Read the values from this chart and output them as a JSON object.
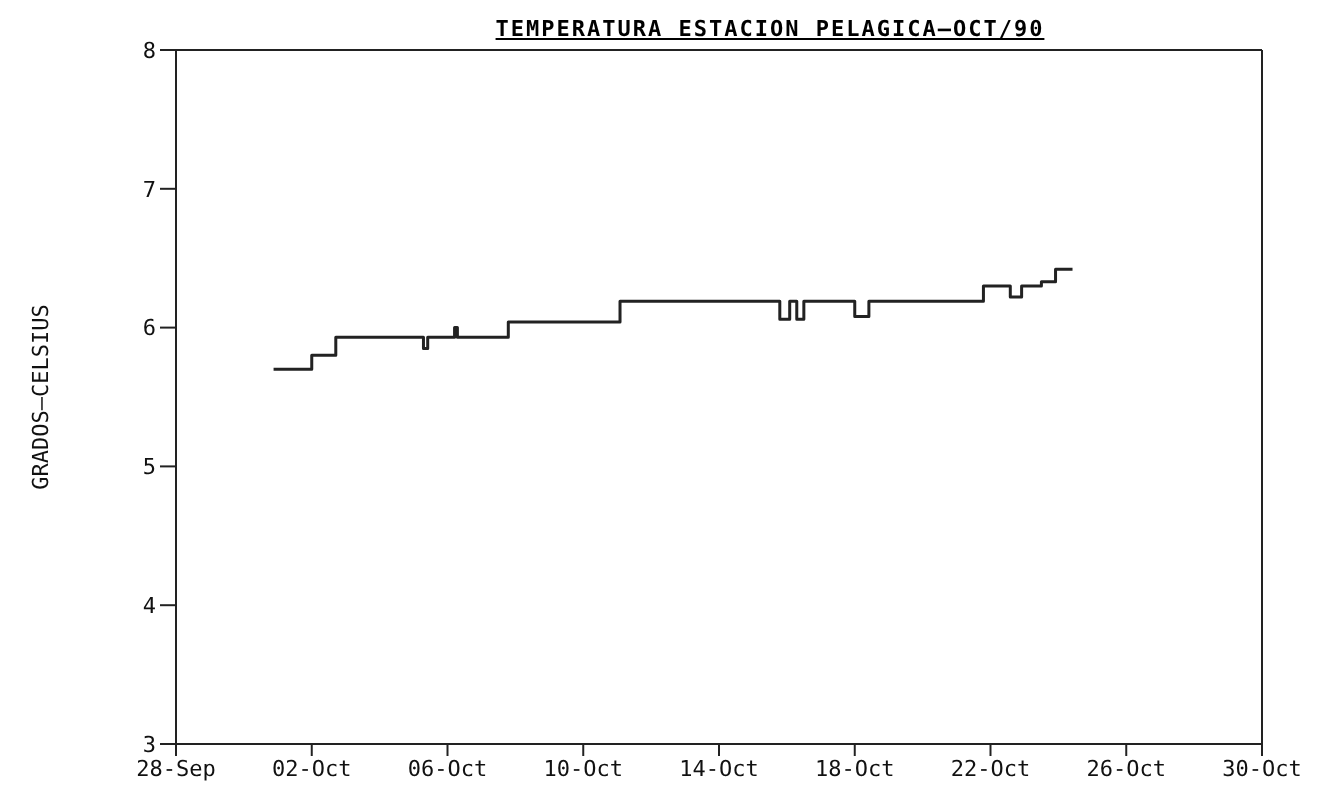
{
  "chart_data": {
    "type": "step",
    "title": "TEMPERATURA ESTACION PELAGICA—OCT/90",
    "ylabel": "GRADOS—CELSIUS",
    "x": [
      "--09-30T21:00",
      "--10-02T00:00",
      "--10-02T17:00",
      "--10-05T07:00",
      "--10-05T10:00",
      "--10-06T05:00",
      "--10-06T07:00",
      "--10-07T19:00",
      "--10-11T02:00",
      "--10-15T19:00",
      "--10-16T02:00",
      "--10-16T07:00",
      "--10-16T12:00",
      "--10-18T00:00",
      "--10-18T10:00",
      "--10-21T19:00",
      "--10-22T14:00",
      "--10-22T22:00",
      "--10-23T12:00",
      "--10-23T22:00",
      "--10-24T10:00"
    ],
    "series": [
      {
        "color": "#222222",
        "values": [
          5.7,
          5.8,
          5.93,
          5.85,
          5.93,
          6.0,
          5.93,
          6.04,
          6.19,
          6.06,
          6.19,
          6.06,
          6.19,
          6.08,
          6.19,
          6.3,
          6.22,
          6.3,
          6.33,
          6.42,
          6.42
        ]
      }
    ],
    "xlim": [
      "--09-28",
      "--10-30"
    ],
    "xticks": [
      {
        "value": "--09-28",
        "label": "28-Sep"
      },
      {
        "value": "--10-02",
        "label": "02-Oct"
      },
      {
        "value": "--10-06",
        "label": "06-Oct"
      },
      {
        "value": "--10-10",
        "label": "10-Oct"
      },
      {
        "value": "--10-14",
        "label": "14-Oct"
      },
      {
        "value": "--10-18",
        "label": "18-Oct"
      },
      {
        "value": "--10-22",
        "label": "22-Oct"
      },
      {
        "value": "--10-26",
        "label": "26-Oct"
      },
      {
        "value": "--10-30",
        "label": "30-Oct"
      }
    ],
    "ylim": [
      3,
      8
    ],
    "yticks": [
      3,
      4,
      5,
      6,
      7,
      8
    ],
    "grid": false,
    "marker": "none",
    "line_style": "solid",
    "legend": false
  }
}
